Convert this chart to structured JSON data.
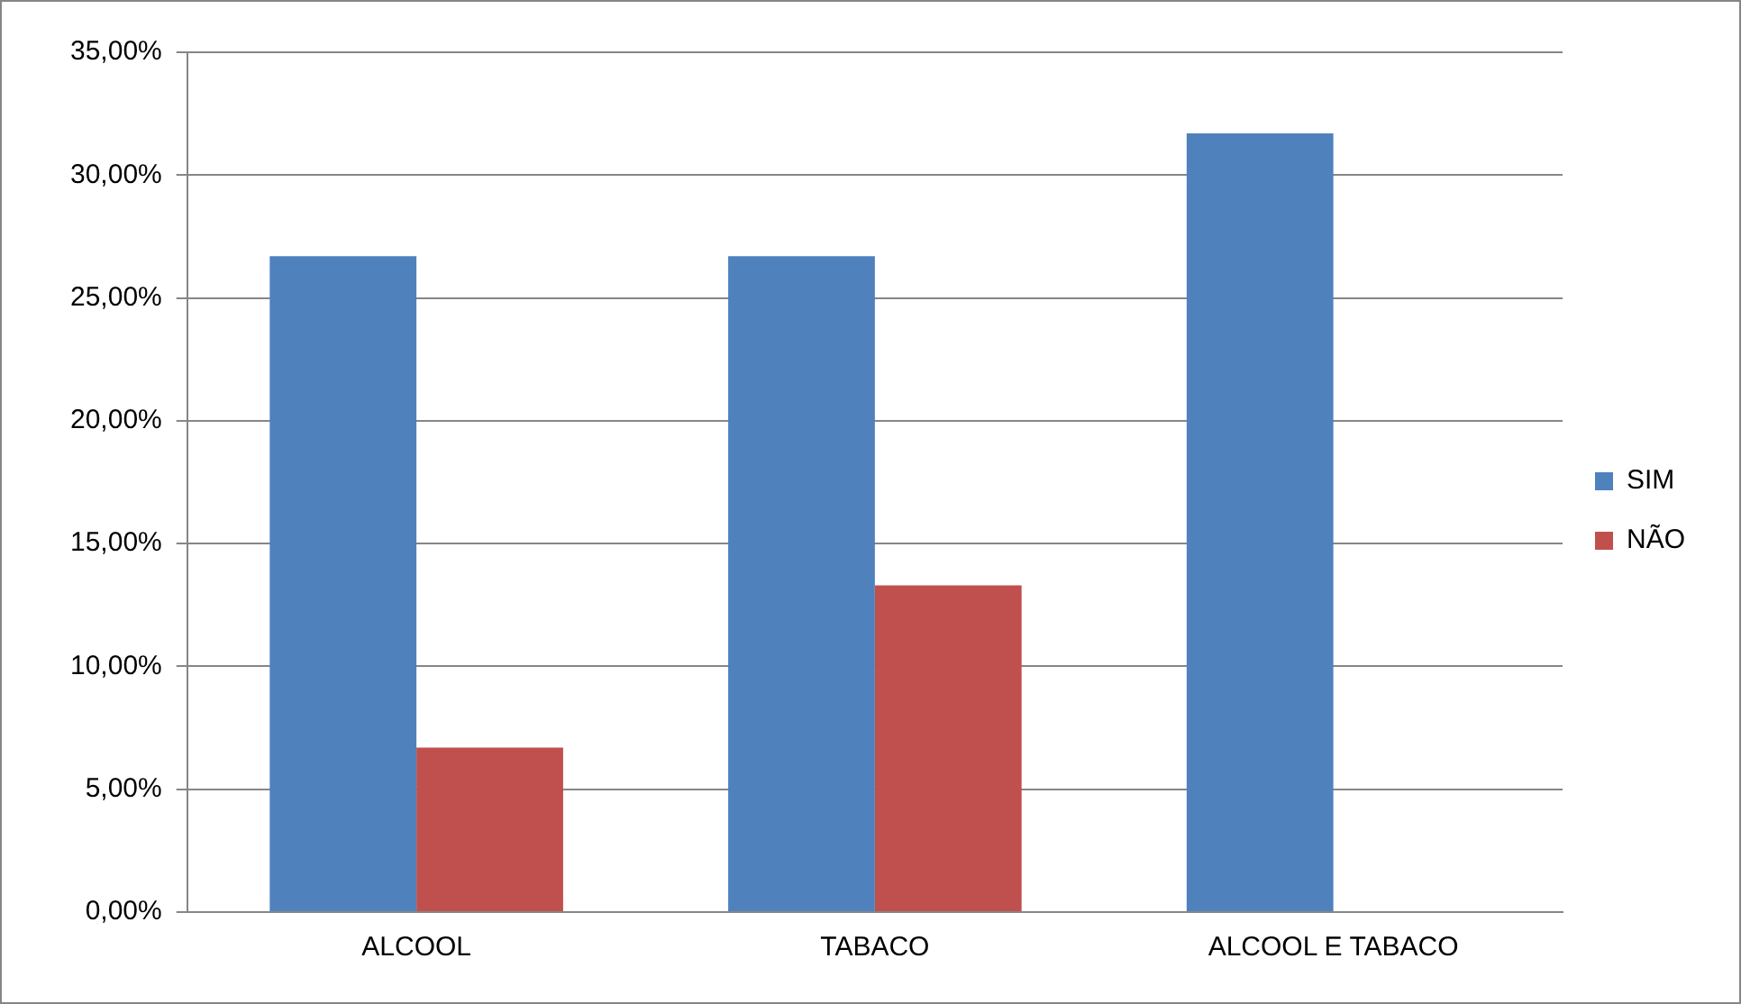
{
  "chart_data": {
    "type": "bar",
    "categories": [
      "ALCOOL",
      "TABACO",
      "ALCOOL E TABACO"
    ],
    "series": [
      {
        "name": "SIM",
        "color": "#4f81bd",
        "values": [
          26.7,
          26.7,
          31.7
        ]
      },
      {
        "name": "NÃO",
        "color": "#c0504d",
        "values": [
          6.7,
          13.3,
          0
        ]
      }
    ],
    "ylim": [
      0,
      35
    ],
    "yticks": [
      {
        "value": 0,
        "label": "0,00%"
      },
      {
        "value": 5,
        "label": "5,00%"
      },
      {
        "value": 10,
        "label": "10,00%"
      },
      {
        "value": 15,
        "label": "15,00%"
      },
      {
        "value": 20,
        "label": "20,00%"
      },
      {
        "value": 25,
        "label": "25,00%"
      },
      {
        "value": 30,
        "label": "30,00%"
      },
      {
        "value": 35,
        "label": "35,00%"
      }
    ],
    "grid": "y",
    "legend": "right"
  }
}
